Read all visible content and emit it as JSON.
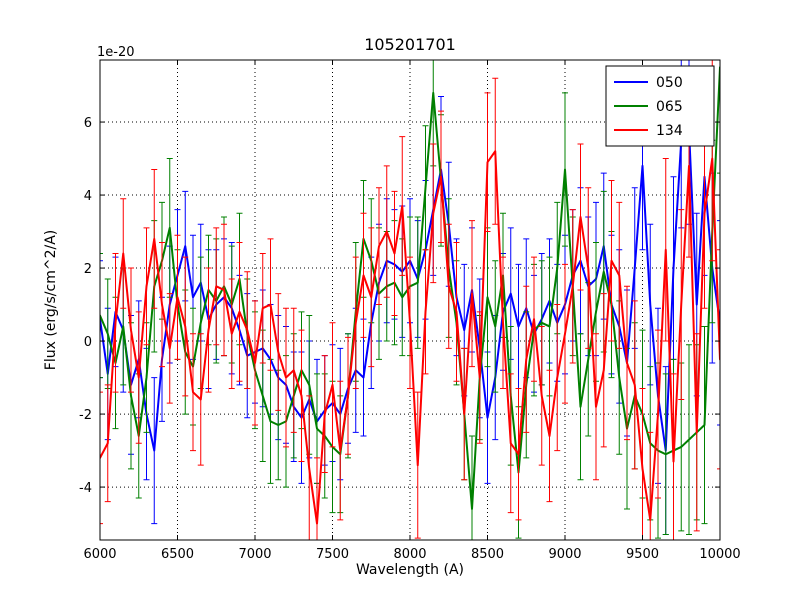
{
  "chart_data": {
    "type": "line",
    "title": "105201701",
    "xlabel": "Wavelength (A)",
    "ylabel": "Flux (erg/s/cm^2/A)",
    "offset_text": "1e-20",
    "xlim": [
      6000,
      10000
    ],
    "ylim": [
      -5.45,
      7.7
    ],
    "xticks": [
      6000,
      6500,
      7000,
      7500,
      8000,
      8500,
      9000,
      9500,
      10000
    ],
    "yticks": [
      -4,
      -2,
      0,
      2,
      4,
      6
    ],
    "grid": true,
    "legend_position": "upper right",
    "x": [
      6000,
      6050,
      6100,
      6150,
      6200,
      6250,
      6300,
      6350,
      6400,
      6450,
      6500,
      6550,
      6600,
      6650,
      6700,
      6750,
      6800,
      6850,
      6900,
      6950,
      7000,
      7050,
      7100,
      7150,
      7200,
      7250,
      7300,
      7350,
      7400,
      7450,
      7500,
      7550,
      7600,
      7650,
      7700,
      7750,
      7800,
      7850,
      7900,
      7950,
      8000,
      8050,
      8100,
      8150,
      8200,
      8250,
      8300,
      8350,
      8400,
      8450,
      8500,
      8550,
      8600,
      8650,
      8700,
      8750,
      8800,
      8850,
      8900,
      8950,
      9000,
      9050,
      9100,
      9150,
      9200,
      9250,
      9300,
      9350,
      9400,
      9450,
      9500,
      9550,
      9600,
      9650,
      9700,
      9750,
      9800,
      9850,
      9900,
      9950,
      10000
    ],
    "series": [
      {
        "name": "050",
        "color": "#0000ff",
        "values": [
          0.6,
          -0.9,
          0.8,
          0.3,
          -1.2,
          -0.5,
          -2.0,
          -3.0,
          -0.5,
          1.0,
          1.8,
          2.6,
          1.2,
          1.6,
          0.6,
          1.0,
          1.2,
          0.9,
          0.3,
          -0.4,
          -0.3,
          -0.2,
          -0.5,
          -1.0,
          -1.2,
          -1.8,
          -2.1,
          -1.6,
          -2.2,
          -1.9,
          -1.7,
          -2.0,
          -1.3,
          -0.8,
          -1.0,
          0.5,
          1.6,
          2.2,
          2.1,
          1.9,
          2.2,
          1.7,
          2.5,
          3.6,
          4.7,
          3.2,
          1.2,
          0.3,
          1.4,
          -0.2,
          -2.1,
          -1.0,
          0.8,
          1.3,
          0.4,
          0.9,
          0.2,
          0.6,
          1.1,
          0.5,
          1.0,
          1.8,
          2.2,
          1.5,
          1.7,
          2.6,
          1.0,
          0.4,
          -0.6,
          2.0,
          4.8,
          1.0,
          -1.5,
          -3.0,
          2.0,
          5.5,
          5.8,
          1.0,
          4.5,
          2.0,
          0.5
        ],
        "errors": [
          1.6,
          1.8,
          1.5,
          1.7,
          1.9,
          1.6,
          1.8,
          2.0,
          1.7,
          1.6,
          1.8,
          1.5,
          1.7,
          1.6,
          1.9,
          1.5,
          1.6,
          1.8,
          1.5,
          1.7,
          1.4,
          1.6,
          1.5,
          1.7,
          1.6,
          1.5,
          1.8,
          1.6,
          1.7,
          1.5,
          1.6,
          1.8,
          1.5,
          1.7,
          1.6,
          1.8,
          1.6,
          1.7,
          1.5,
          1.8,
          1.7,
          1.6,
          1.9,
          1.8,
          2.0,
          1.7,
          1.6,
          1.8,
          1.7,
          1.9,
          1.8,
          1.7,
          1.6,
          1.8,
          1.7,
          1.9,
          1.6,
          1.8,
          1.7,
          1.6,
          1.9,
          1.8,
          2.0,
          1.9,
          2.1,
          2.0,
          1.9,
          2.1,
          2.0,
          2.2,
          2.3,
          2.2,
          2.4,
          2.3,
          2.5,
          2.4,
          2.6,
          2.5,
          2.7,
          2.6,
          2.8
        ]
      },
      {
        "name": "065",
        "color": "#008000",
        "values": [
          0.7,
          0.2,
          -0.6,
          0.4,
          -1.5,
          -2.6,
          -1.0,
          1.5,
          2.2,
          3.1,
          1.0,
          -0.3,
          -0.7,
          0.5,
          1.4,
          1.1,
          1.5,
          1.0,
          1.7,
          0.2,
          -0.8,
          -1.5,
          -2.2,
          -2.3,
          -2.2,
          -1.5,
          -0.8,
          -1.2,
          -2.4,
          -2.6,
          -2.9,
          -3.1,
          -1.5,
          0.8,
          2.8,
          2.2,
          1.3,
          1.5,
          1.6,
          1.2,
          1.5,
          1.6,
          4.2,
          6.8,
          4.4,
          2.0,
          0.5,
          -2.0,
          -4.6,
          -1.0,
          1.2,
          0.4,
          1.8,
          -1.5,
          -3.6,
          -1.2,
          0.3,
          0.5,
          0.4,
          2.0,
          4.7,
          1.5,
          -1.8,
          -0.5,
          0.8,
          1.9,
          1.0,
          -1.0,
          -2.4,
          -1.5,
          -2.0,
          -2.8,
          -3.0,
          -3.1,
          -3.0,
          -2.9,
          -2.7,
          -2.5,
          -2.3,
          3.0,
          7.5
        ],
        "errors": [
          1.7,
          1.5,
          1.8,
          1.6,
          2.0,
          1.7,
          1.5,
          1.8,
          1.6,
          1.9,
          1.5,
          1.7,
          1.6,
          1.8,
          1.5,
          1.7,
          1.9,
          1.6,
          1.8,
          1.5,
          1.6,
          1.8,
          1.7,
          1.5,
          1.8,
          1.7,
          1.6,
          1.9,
          1.5,
          1.7,
          1.8,
          1.6,
          1.7,
          1.9,
          1.6,
          1.7,
          1.8,
          1.5,
          1.7,
          1.6,
          1.9,
          1.8,
          1.7,
          2.0,
          1.8,
          1.9,
          1.7,
          1.8,
          2.0,
          1.7,
          1.9,
          1.8,
          1.7,
          1.9,
          1.8,
          2.0,
          1.8,
          1.7,
          1.9,
          1.8,
          2.1,
          1.9,
          2.0,
          2.1,
          1.9,
          2.2,
          2.0,
          2.1,
          2.2,
          2.0,
          2.3,
          2.1,
          2.4,
          2.2,
          2.5,
          2.3,
          2.6,
          2.4,
          2.7,
          2.5,
          2.9
        ]
      },
      {
        "name": "134",
        "color": "#ff0000",
        "values": [
          -3.2,
          -2.8,
          0.5,
          2.4,
          0.3,
          -1.0,
          1.5,
          2.8,
          1.0,
          -0.2,
          1.2,
          0.4,
          -1.4,
          -1.6,
          0.3,
          1.5,
          1.4,
          0.2,
          0.8,
          0.3,
          -0.6,
          0.9,
          1.0,
          -0.3,
          -1.0,
          -0.8,
          -1.5,
          -3.5,
          -5.0,
          -2.0,
          -1.2,
          -3.0,
          -1.5,
          0.5,
          1.8,
          1.2,
          2.6,
          3.0,
          2.4,
          3.7,
          0.5,
          -3.4,
          0.8,
          3.5,
          4.5,
          1.5,
          0.8,
          -2.0,
          1.3,
          -1.0,
          4.9,
          5.2,
          0.5,
          -2.8,
          -3.1,
          -0.5,
          0.6,
          -1.5,
          -2.6,
          -1.0,
          0.2,
          1.5,
          3.4,
          2.0,
          -1.8,
          -0.8,
          2.2,
          1.8,
          -0.6,
          -1.2,
          -3.5,
          -4.9,
          -2.0,
          2.5,
          -3.3,
          1.0,
          4.8,
          -2.5,
          3.5,
          5.0,
          -0.5
        ],
        "errors": [
          1.8,
          1.6,
          1.9,
          1.5,
          1.7,
          1.8,
          1.6,
          1.9,
          1.7,
          1.5,
          1.7,
          1.9,
          1.6,
          1.8,
          1.7,
          1.6,
          1.8,
          1.5,
          1.9,
          1.6,
          1.7,
          1.5,
          1.8,
          1.6,
          1.9,
          1.7,
          1.8,
          2.0,
          1.8,
          1.6,
          1.7,
          1.9,
          1.6,
          1.8,
          1.7,
          1.9,
          1.6,
          1.8,
          1.7,
          1.9,
          1.8,
          2.0,
          1.7,
          1.9,
          1.8,
          1.7,
          1.9,
          1.8,
          2.0,
          1.8,
          1.9,
          2.0,
          1.8,
          1.9,
          1.8,
          2.0,
          1.7,
          1.9,
          1.8,
          2.0,
          1.9,
          2.1,
          2.0,
          2.2,
          2.0,
          2.1,
          2.2,
          2.0,
          2.1,
          2.3,
          2.2,
          2.4,
          2.3,
          2.5,
          2.4,
          2.6,
          2.5,
          2.7,
          2.6,
          2.8,
          3.0
        ]
      }
    ]
  }
}
